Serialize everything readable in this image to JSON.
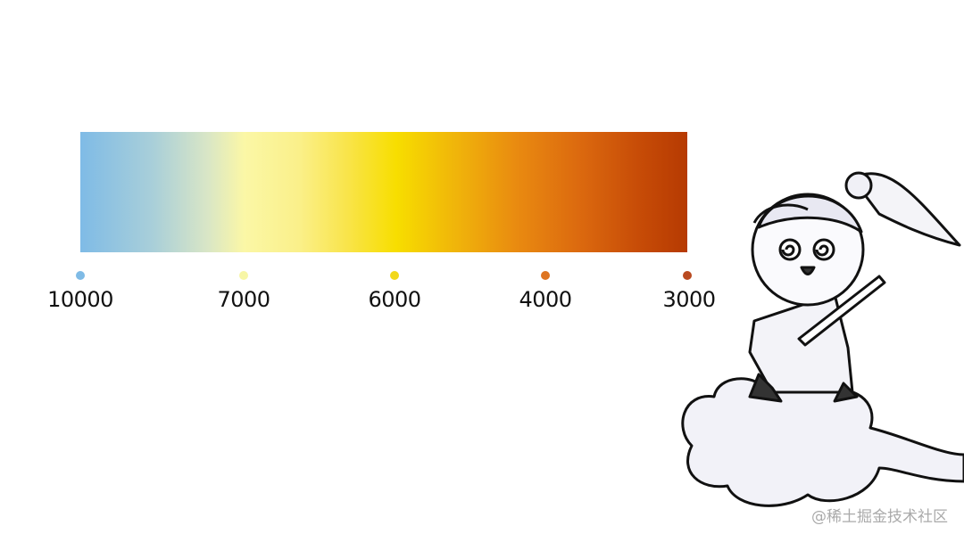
{
  "scale": {
    "stops": [
      {
        "label": "10000",
        "color": "#7fbbe6"
      },
      {
        "label": "7000",
        "color": "#f7f6a6"
      },
      {
        "label": "6000",
        "color": "#f2d81a"
      },
      {
        "label": "4000",
        "color": "#de7420"
      },
      {
        "label": "3000",
        "color": "#b94a20"
      }
    ]
  },
  "watermark": "@稀土掘金技术社区"
}
